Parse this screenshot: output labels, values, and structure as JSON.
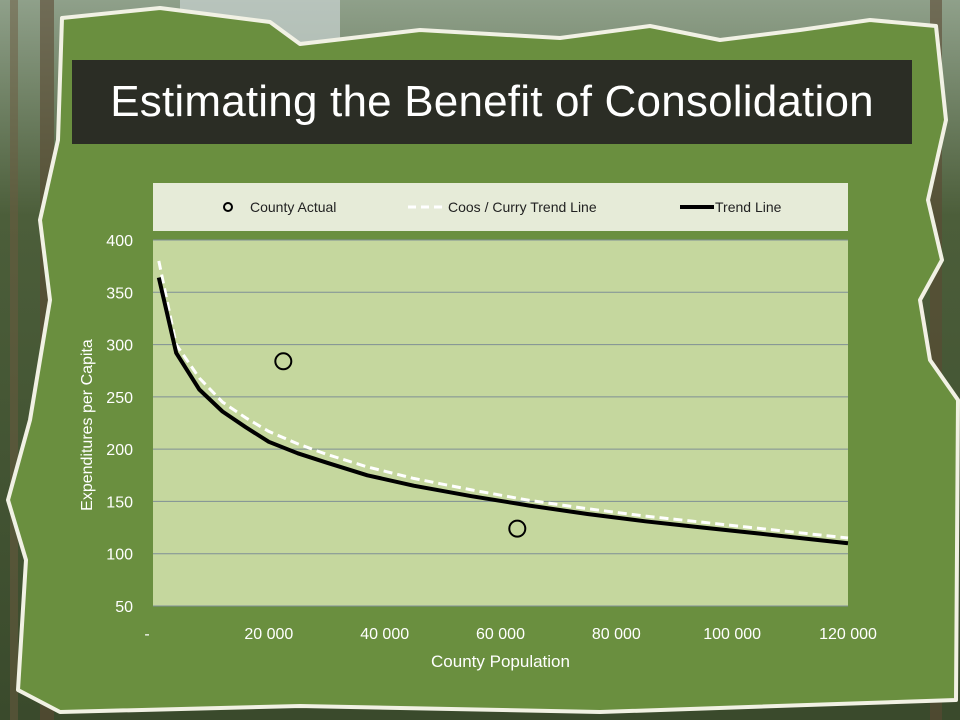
{
  "slide": {
    "title": "Estimating the Benefit of Consolidation"
  },
  "colors": {
    "frame_green": "#6a8f3f",
    "plot_bg": "#c5d79e",
    "legend_bg": "#e6ebd8",
    "title_bg": "#2b2d25",
    "trend_line": "#000000",
    "coos_line": "#ffffff",
    "gridline": "#7f8f95"
  },
  "chart_data": {
    "type": "line",
    "xlabel": "County Population",
    "ylabel": "Expenditures per Capita",
    "xlim": [
      0,
      120000
    ],
    "ylim": [
      50,
      400
    ],
    "x_ticks": [
      0,
      20000,
      40000,
      60000,
      80000,
      100000,
      120000
    ],
    "x_tick_labels": [
      "-",
      "20 000",
      "40 000",
      "60 000",
      "80 000",
      "100 000",
      "120 000"
    ],
    "y_ticks": [
      50,
      100,
      150,
      200,
      250,
      300,
      350,
      400
    ],
    "y_tick_labels": [
      "50",
      "100",
      "150",
      "200",
      "250",
      "300",
      "350",
      "400"
    ],
    "grid": "horizontal",
    "legend_position": "top",
    "legend": [
      {
        "label": "County Actual",
        "style": "marker-circle"
      },
      {
        "label": "Coos / Curry Trend Line",
        "style": "dashed-white"
      },
      {
        "label": "Trend Line",
        "style": "solid-black"
      }
    ],
    "series": [
      {
        "name": "County Actual",
        "kind": "scatter",
        "x": [
          22500,
          62900
        ],
        "y": [
          284,
          124
        ]
      },
      {
        "name": "Coos / Curry Trend Line",
        "kind": "line",
        "x": [
          1000,
          4000,
          8000,
          12000,
          16000,
          20000,
          25000,
          30000,
          37000,
          45000,
          55000,
          65000,
          75000,
          85000,
          95000,
          105000,
          115000,
          120000
        ],
        "y": [
          380,
          300,
          268,
          245,
          230,
          217,
          205,
          195,
          183,
          172,
          161,
          151,
          143,
          136,
          130,
          124,
          118,
          115
        ]
      },
      {
        "name": "Trend Line",
        "kind": "line",
        "x": [
          1000,
          4000,
          8000,
          12000,
          16000,
          20000,
          25000,
          30000,
          37000,
          45000,
          55000,
          65000,
          75000,
          85000,
          95000,
          105000,
          115000,
          120000
        ],
        "y": [
          364,
          292,
          257,
          236,
          221,
          207,
          196,
          187,
          175,
          165,
          155,
          146,
          138,
          131,
          125,
          119,
          113,
          110
        ]
      }
    ]
  }
}
